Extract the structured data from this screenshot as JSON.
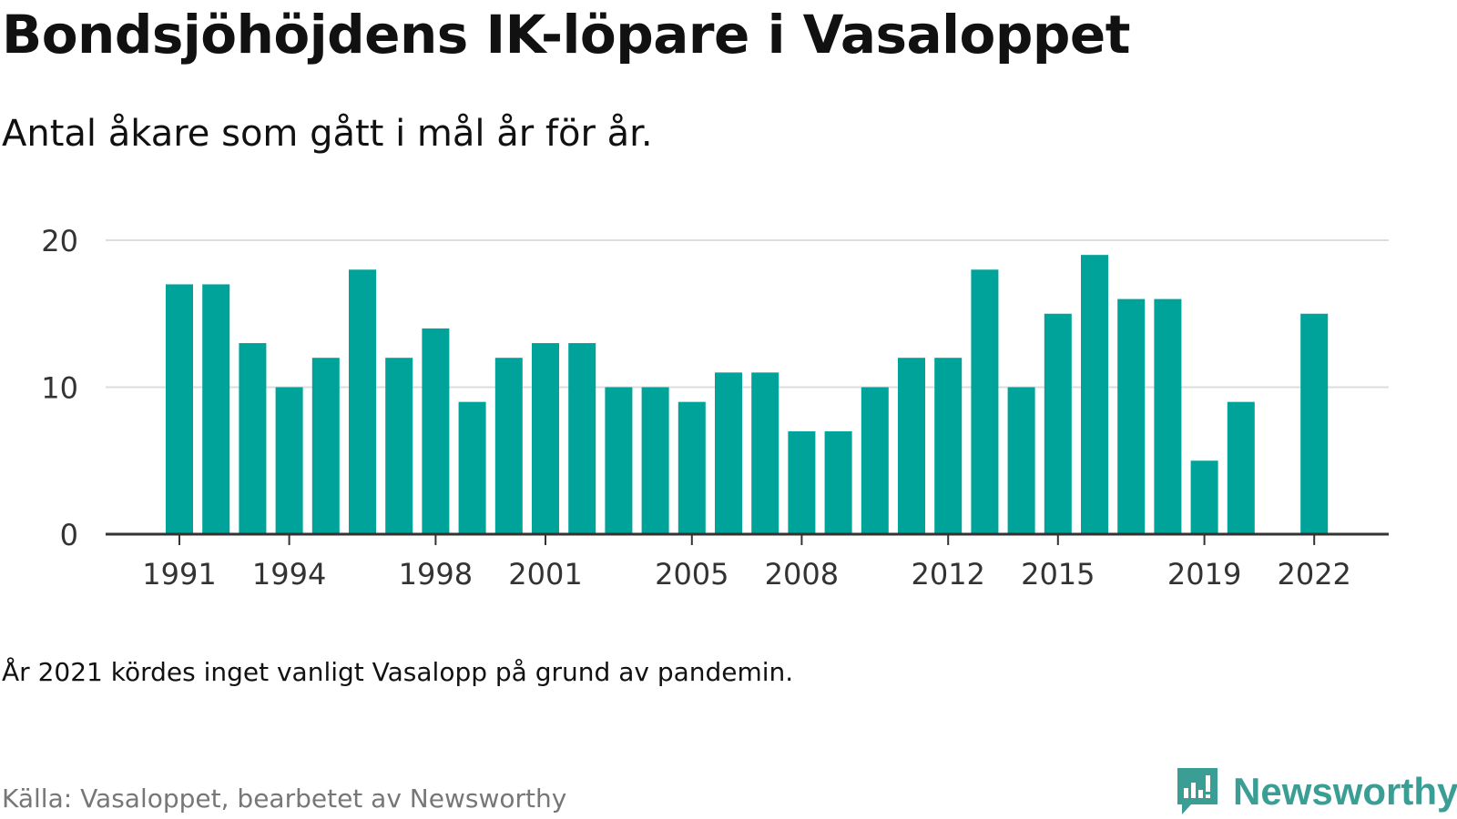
{
  "title": "Bondsjöhöjdens IK-löpare i Vasaloppet",
  "subtitle": "Antal åkare som gått i mål år för år.",
  "note": "År 2021 kördes inget vanligt Vasalopp på grund av pandemin.",
  "source": "Källa: Vasaloppet, bearbetet av Newsworthy",
  "brand": {
    "name": "Newsworthy",
    "icon": "newsworthy-logo-icon",
    "color": "#3a9e94"
  },
  "colors": {
    "bar": "#00a39a",
    "grid": "#dddddd",
    "axis": "#333333",
    "tick_text": "#333333"
  },
  "chart_data": {
    "type": "bar",
    "title": "Bondsjöhöjdens IK-löpare i Vasaloppet",
    "subtitle": "Antal åkare som gått i mål år för år.",
    "xlabel": "",
    "ylabel": "",
    "categories": [
      "1991",
      "1992",
      "1993",
      "1994",
      "1995",
      "1996",
      "1997",
      "1998",
      "1999",
      "2000",
      "2001",
      "2002",
      "2003",
      "2004",
      "2005",
      "2006",
      "2007",
      "2008",
      "2009",
      "2010",
      "2011",
      "2012",
      "2013",
      "2014",
      "2015",
      "2016",
      "2017",
      "2018",
      "2019",
      "2020",
      "2021",
      "2022"
    ],
    "values": [
      17,
      17,
      13,
      10,
      12,
      18,
      12,
      14,
      9,
      12,
      13,
      13,
      10,
      10,
      9,
      11,
      11,
      7,
      7,
      10,
      12,
      12,
      18,
      10,
      15,
      19,
      16,
      16,
      5,
      9,
      null,
      15
    ],
    "x_tick_labels": [
      "1991",
      "1994",
      "1998",
      "2001",
      "2005",
      "2008",
      "2012",
      "2015",
      "2019",
      "2022"
    ],
    "y_ticks": [
      0,
      10,
      20
    ],
    "ylim": [
      0,
      20
    ],
    "grid": true,
    "legend": "none"
  }
}
